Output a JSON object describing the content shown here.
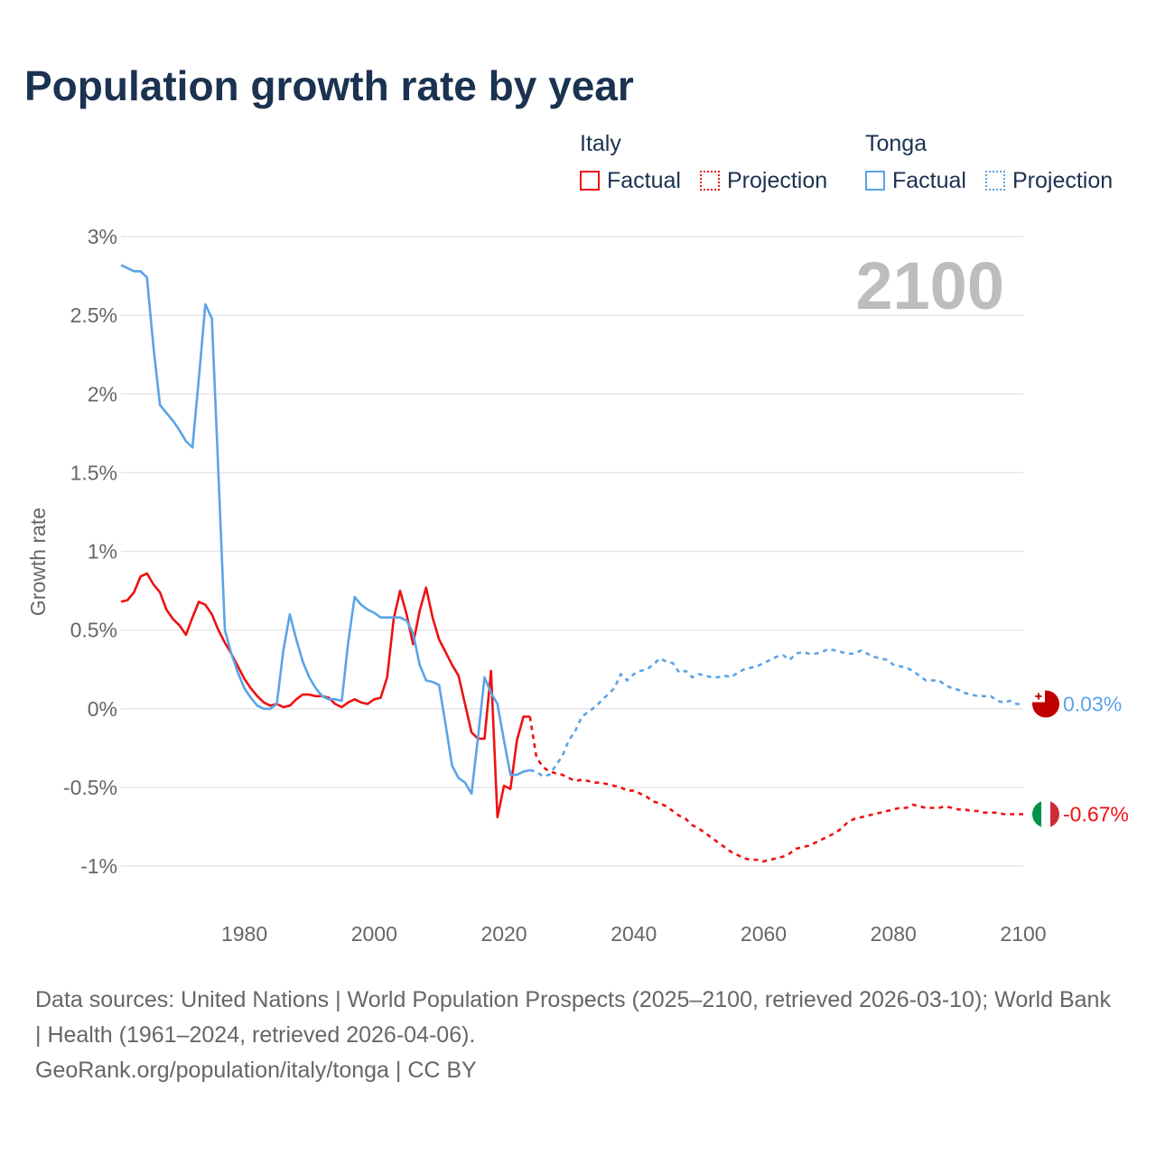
{
  "title": "Population growth rate by year",
  "legend": {
    "groups": [
      {
        "name": "Italy",
        "factual": "Factual",
        "projection": "Projection",
        "color": "#ee1111"
      },
      {
        "name": "Tonga",
        "factual": "Factual",
        "projection": "Projection",
        "color": "#5ba3e8"
      }
    ]
  },
  "footer": {
    "sources": "Data sources: United Nations | World Population Prospects (2025–2100, retrieved 2026-03-10); World Bank | Health (1961–2024, retrieved 2026-04-06).",
    "link": "GeoRank.org/population/italy/tonga | CC BY"
  },
  "chart_data": {
    "type": "line",
    "title": "Population growth rate by year",
    "ylabel": "Growth rate",
    "xlabel": "",
    "year_label": "2100",
    "xlim": [
      1961,
      2100
    ],
    "ylim": [
      -1.1,
      3
    ],
    "x_ticks": [
      1980,
      2000,
      2020,
      2040,
      2060,
      2080,
      2100
    ],
    "y_ticks": [
      3,
      2.5,
      2,
      1.5,
      1,
      0.5,
      0,
      -0.5,
      -1
    ],
    "y_tick_labels": [
      "3%",
      "2.5%",
      "2%",
      "1.5%",
      "1%",
      "0.5%",
      "0%",
      "-0.5%",
      "-1%"
    ],
    "grid": true,
    "series": [
      {
        "name": "Italy",
        "kind": "factual",
        "color": "#ee1111",
        "start": 1961,
        "values": [
          0.68,
          0.69,
          0.74,
          0.84,
          0.86,
          0.79,
          0.74,
          0.63,
          0.57,
          0.53,
          0.47,
          0.58,
          0.68,
          0.66,
          0.6,
          0.5,
          0.42,
          0.35,
          0.27,
          0.19,
          0.13,
          0.08,
          0.04,
          0.02,
          0.03,
          0.01,
          0.02,
          0.06,
          0.09,
          0.09,
          0.08,
          0.08,
          0.07,
          0.03,
          0.01,
          0.04,
          0.06,
          0.04,
          0.03,
          0.06,
          0.07,
          0.2,
          0.57,
          0.75,
          0.6,
          0.41,
          0.62,
          0.77,
          0.58,
          0.44,
          0.36,
          0.28,
          0.21,
          0.03,
          -0.15,
          -0.19,
          -0.19,
          0.24,
          -0.69,
          -0.49,
          -0.51,
          -0.2,
          -0.05,
          -0.05
        ]
      },
      {
        "name": "Italy",
        "kind": "projection",
        "color": "#ee1111",
        "start": 2024,
        "values": [
          -0.05,
          -0.31,
          -0.37,
          -0.4,
          -0.41,
          -0.42,
          -0.44,
          -0.46,
          -0.45,
          -0.46,
          -0.47,
          -0.47,
          -0.48,
          -0.49,
          -0.5,
          -0.52,
          -0.52,
          -0.54,
          -0.56,
          -0.59,
          -0.6,
          -0.62,
          -0.65,
          -0.68,
          -0.7,
          -0.74,
          -0.76,
          -0.79,
          -0.82,
          -0.85,
          -0.88,
          -0.91,
          -0.93,
          -0.95,
          -0.96,
          -0.96,
          -0.97,
          -0.96,
          -0.95,
          -0.94,
          -0.92,
          -0.89,
          -0.88,
          -0.87,
          -0.85,
          -0.83,
          -0.81,
          -0.79,
          -0.76,
          -0.72,
          -0.7,
          -0.69,
          -0.68,
          -0.67,
          -0.66,
          -0.65,
          -0.64,
          -0.63,
          -0.63,
          -0.61,
          -0.62,
          -0.63,
          -0.63,
          -0.63,
          -0.62,
          -0.63,
          -0.64,
          -0.64,
          -0.65,
          -0.65,
          -0.66,
          -0.66,
          -0.66,
          -0.67,
          -0.67,
          -0.67,
          -0.67
        ]
      },
      {
        "name": "Tonga",
        "kind": "factual",
        "color": "#5ba3e8",
        "start": 1961,
        "values": [
          2.82,
          2.8,
          2.78,
          2.78,
          2.74,
          2.3,
          1.93,
          1.88,
          1.83,
          1.77,
          1.7,
          1.66,
          2.1,
          2.57,
          2.48,
          1.5,
          0.5,
          0.35,
          0.23,
          0.13,
          0.07,
          0.02,
          0.0,
          0.0,
          0.03,
          0.37,
          0.6,
          0.44,
          0.3,
          0.2,
          0.13,
          0.08,
          0.06,
          0.06,
          0.05,
          0.42,
          0.71,
          0.66,
          0.63,
          0.61,
          0.58,
          0.58,
          0.58,
          0.58,
          0.56,
          0.48,
          0.28,
          0.18,
          0.17,
          0.15,
          -0.1,
          -0.36,
          -0.44,
          -0.47,
          -0.54,
          -0.18,
          0.2,
          0.1,
          0.03,
          -0.2,
          -0.42,
          -0.42,
          -0.4,
          -0.39
        ]
      },
      {
        "name": "Tonga",
        "kind": "projection",
        "color": "#5ba3e8",
        "start": 2024,
        "values": [
          -0.39,
          -0.4,
          -0.43,
          -0.42,
          -0.36,
          -0.3,
          -0.2,
          -0.14,
          -0.05,
          -0.02,
          0.01,
          0.05,
          0.09,
          0.13,
          0.22,
          0.18,
          0.22,
          0.24,
          0.25,
          0.28,
          0.32,
          0.3,
          0.29,
          0.23,
          0.24,
          0.2,
          0.22,
          0.21,
          0.2,
          0.2,
          0.21,
          0.2,
          0.23,
          0.25,
          0.26,
          0.27,
          0.29,
          0.31,
          0.33,
          0.34,
          0.31,
          0.35,
          0.36,
          0.35,
          0.35,
          0.36,
          0.38,
          0.37,
          0.36,
          0.35,
          0.35,
          0.37,
          0.35,
          0.33,
          0.32,
          0.31,
          0.28,
          0.27,
          0.26,
          0.24,
          0.21,
          0.18,
          0.18,
          0.18,
          0.15,
          0.13,
          0.12,
          0.1,
          0.09,
          0.08,
          0.08,
          0.08,
          0.05,
          0.04,
          0.05,
          0.03,
          0.03
        ]
      }
    ],
    "end_labels": [
      {
        "country": "Tonga",
        "text": "0.03%",
        "value": 0.03,
        "color": "#5ba3e8"
      },
      {
        "country": "Italy",
        "text": "-0.67%",
        "value": -0.67,
        "color": "#ee1111"
      }
    ]
  }
}
